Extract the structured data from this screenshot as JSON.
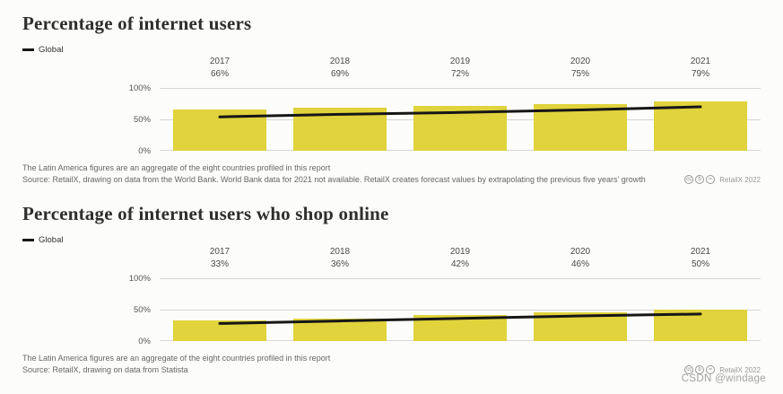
{
  "colors": {
    "bar": "#e0d33c",
    "line": "#161616",
    "grid": "#d6d6d4",
    "background": "#fcfcfa"
  },
  "charts": [
    {
      "title": "Percentage of internet users",
      "legend": "Global",
      "footnotes": [
        "The Latin America figures are an aggregate of the eight countries profiled in this report",
        "Source: RetailX, drawing on data from the World Bank. World Bank data for 2021 not available. RetailX creates forecast values by extrapolating the previous five years’ growth"
      ],
      "credit": "RetailX 2022"
    },
    {
      "title": "Percentage of internet users who shop online",
      "legend": "Global",
      "footnotes": [
        "The Latin America figures are an aggregate of the eight countries profiled in this report",
        "Source: RetailX, drawing on data from Statista"
      ],
      "credit": "RetailX 2022"
    }
  ],
  "credit_icons": [
    {
      "name": "cc-icon",
      "glyph": "cc"
    },
    {
      "name": "cc-by-icon",
      "glyph": "b"
    },
    {
      "name": "cc-nd-icon",
      "glyph": "="
    }
  ],
  "watermark": "CSDN @windage",
  "chart_data": [
    {
      "type": "bar",
      "subtype": "bar+line",
      "title": "Percentage of internet users",
      "categories": [
        "2017",
        "2018",
        "2019",
        "2020",
        "2021"
      ],
      "series": [
        {
          "name": "Latin America",
          "type": "bar",
          "values": [
            66,
            69,
            72,
            75,
            79
          ],
          "labels": [
            "66%",
            "69%",
            "72%",
            "75%",
            "79%"
          ],
          "color": "#e0d33c"
        },
        {
          "name": "Global",
          "type": "line",
          "values": [
            54,
            58,
            61,
            65,
            70
          ],
          "color": "#161616"
        }
      ],
      "xlabel": "",
      "ylabel": "",
      "ylim": [
        0,
        100
      ],
      "yticks": [
        "100%",
        "50%",
        "0%"
      ],
      "grid": true,
      "legend_position": "top-left"
    },
    {
      "type": "bar",
      "subtype": "bar+line",
      "title": "Percentage of internet users who shop online",
      "categories": [
        "2017",
        "2018",
        "2019",
        "2020",
        "2021"
      ],
      "series": [
        {
          "name": "Latin America",
          "type": "bar",
          "values": [
            33,
            36,
            42,
            46,
            50
          ],
          "labels": [
            "33%",
            "36%",
            "42%",
            "46%",
            "50%"
          ],
          "color": "#e0d33c"
        },
        {
          "name": "Global",
          "type": "line",
          "values": [
            28,
            32,
            36,
            40,
            43
          ],
          "color": "#161616"
        }
      ],
      "xlabel": "",
      "ylabel": "",
      "ylim": [
        0,
        100
      ],
      "yticks": [
        "100%",
        "50%",
        "0%"
      ],
      "grid": true,
      "legend_position": "top-left"
    }
  ]
}
